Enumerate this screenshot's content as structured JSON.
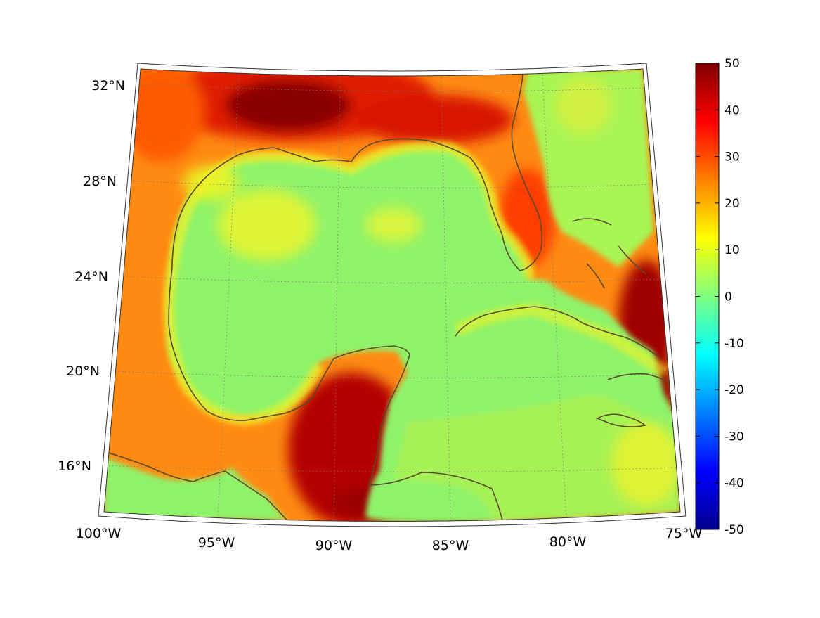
{
  "map": {
    "lat_labels": [
      {
        "lat": 32,
        "label": "32°N"
      },
      {
        "lat": 28,
        "label": "28°N"
      },
      {
        "lat": 24,
        "label": "24°N"
      },
      {
        "lat": 20,
        "label": "20°N"
      },
      {
        "lat": 16,
        "label": "16°N"
      }
    ],
    "lon_labels": [
      {
        "lon": -100,
        "label": "100°W"
      },
      {
        "lon": -95,
        "label": "95°W"
      },
      {
        "lon": -90,
        "label": "90°W"
      },
      {
        "lon": -85,
        "label": "85°W"
      },
      {
        "lon": -80,
        "label": "80°W"
      },
      {
        "lon": -75,
        "label": "75°W"
      }
    ],
    "lat_range": [
      14,
      33
    ],
    "lon_range": [
      -100,
      -75
    ],
    "grid": true,
    "coastline_color": "#5a4a2a"
  },
  "colorbar": {
    "ticks": [
      "50",
      "40",
      "30",
      "20",
      "10",
      "0",
      "-10",
      "-20",
      "-30",
      "-40",
      "-50"
    ],
    "range": [
      -50,
      50
    ],
    "colormap": "jet",
    "placement": "right"
  }
}
